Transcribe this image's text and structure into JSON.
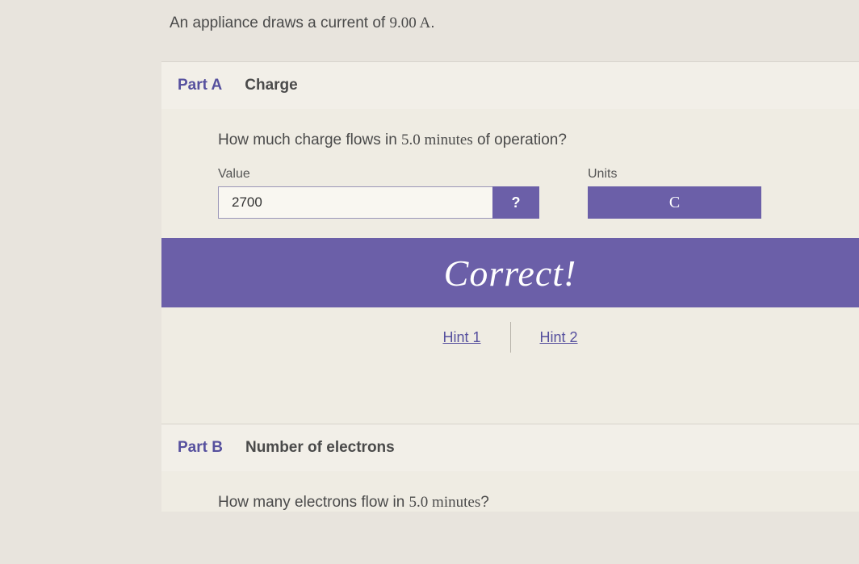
{
  "problem": {
    "text_before": "An appliance draws a current of ",
    "value_with_unit": "9.00 A",
    "text_after": "."
  },
  "partA": {
    "label": "Part A",
    "title": "Charge",
    "question_before": "How much charge flows in ",
    "question_value": "5.0 minutes",
    "question_after": " of operation?",
    "value_label": "Value",
    "value": "2700",
    "help_label": "?",
    "units_label": "Units",
    "units_value": "C",
    "feedback": "Correct!",
    "hint1": "Hint 1",
    "hint2": "Hint 2"
  },
  "partB": {
    "label": "Part B",
    "title": "Number of electrons",
    "question_before": "How many electrons flow in ",
    "question_value": "5.0 minutes",
    "question_after": "?"
  },
  "colors": {
    "accent": "#6b5fa8",
    "background": "#e8e4dd",
    "panel": "#efece3",
    "header_panel": "#f2efe8",
    "text": "#4a4a4a"
  }
}
